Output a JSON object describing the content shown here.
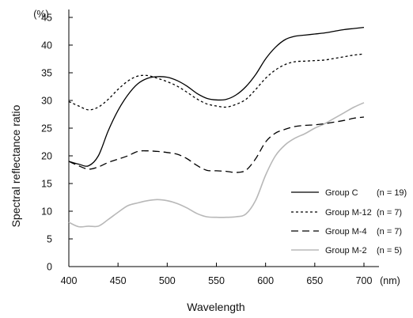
{
  "chart_data": {
    "type": "line",
    "title": "",
    "xlabel": "Wavelength",
    "ylabel": "Spectral reflectance ratio",
    "x_unit": "(nm)",
    "y_unit": "(%)",
    "xlim": [
      400,
      700
    ],
    "ylim": [
      0,
      45
    ],
    "xticks": [
      400,
      450,
      500,
      550,
      600,
      650,
      700
    ],
    "yticks": [
      0,
      5,
      10,
      15,
      20,
      25,
      30,
      35,
      40,
      45
    ],
    "grid": false,
    "legend_position": "bottom-right",
    "x": [
      400,
      410,
      420,
      430,
      440,
      450,
      460,
      470,
      480,
      490,
      500,
      510,
      520,
      530,
      540,
      550,
      560,
      570,
      580,
      590,
      600,
      610,
      620,
      630,
      640,
      650,
      660,
      670,
      680,
      690,
      700
    ],
    "series": [
      {
        "name": "Group C",
        "n_label": "(n = 19)",
        "style": "solid",
        "color": "#000000",
        "values": [
          19.0,
          18.5,
          18.2,
          20.0,
          24.5,
          28.2,
          31.0,
          33.0,
          34.0,
          34.3,
          34.2,
          33.6,
          32.6,
          31.3,
          30.4,
          30.1,
          30.2,
          31.0,
          32.5,
          34.7,
          37.5,
          39.6,
          41.0,
          41.6,
          41.8,
          42.0,
          42.2,
          42.5,
          42.8,
          43.0,
          43.2
        ]
      },
      {
        "name": "Group M-12",
        "n_label": "(n = 7)",
        "style": "dotted",
        "color": "#000000",
        "values": [
          29.8,
          29.0,
          28.3,
          28.8,
          30.2,
          32.0,
          33.5,
          34.4,
          34.5,
          34.0,
          33.4,
          32.6,
          31.5,
          30.3,
          29.4,
          29.0,
          28.8,
          29.3,
          30.2,
          32.0,
          34.0,
          35.5,
          36.5,
          37.0,
          37.1,
          37.2,
          37.3,
          37.6,
          37.9,
          38.2,
          38.4
        ]
      },
      {
        "name": "Group M-4",
        "n_label": "(n = 7)",
        "style": "dashed",
        "color": "#000000",
        "values": [
          19.0,
          18.2,
          17.6,
          18.0,
          18.8,
          19.4,
          20.0,
          20.8,
          20.9,
          20.8,
          20.6,
          20.3,
          19.5,
          18.3,
          17.4,
          17.3,
          17.2,
          17.0,
          17.4,
          19.5,
          22.5,
          24.1,
          24.8,
          25.3,
          25.5,
          25.6,
          25.8,
          26.1,
          26.4,
          26.8,
          27.0
        ]
      },
      {
        "name": "Group M-2",
        "n_label": "(n = 5)",
        "style": "solid",
        "color": "#b8b8b8",
        "values": [
          8.0,
          7.2,
          7.3,
          7.3,
          8.5,
          9.8,
          11.0,
          11.5,
          11.9,
          12.1,
          11.9,
          11.4,
          10.6,
          9.6,
          9.0,
          8.9,
          8.9,
          9.0,
          9.5,
          12.0,
          16.5,
          20.0,
          22.0,
          23.2,
          24.0,
          25.0,
          25.8,
          26.8,
          27.8,
          28.8,
          29.6
        ]
      }
    ]
  }
}
